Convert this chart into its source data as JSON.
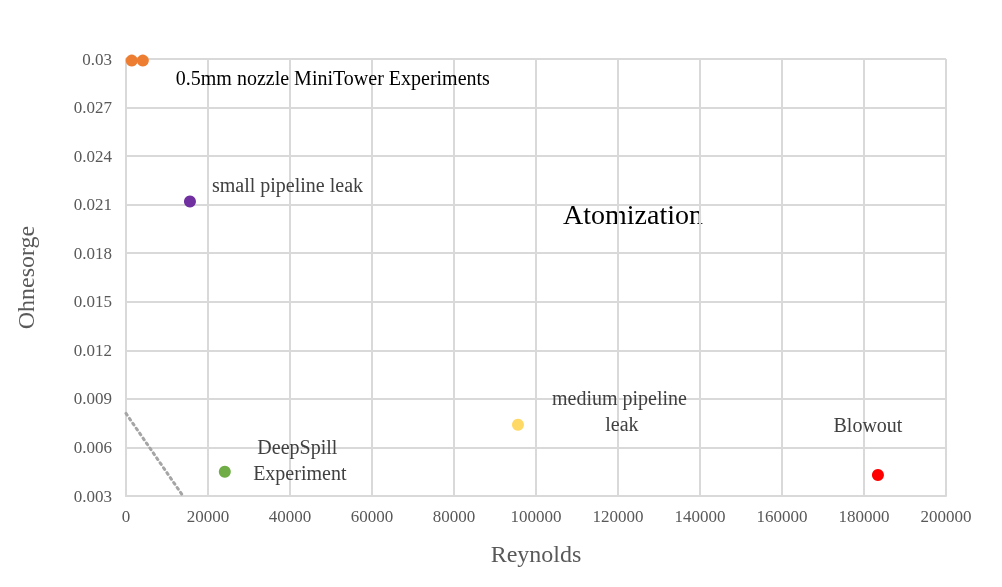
{
  "chart_data": {
    "type": "scatter",
    "xlabel": "Reynolds",
    "ylabel": "Ohnesorge",
    "series": [
      {
        "name": "0.5mm nozzle MiniTower Experiments",
        "color": "#ed7d31",
        "x": [
          1400,
          4100
        ],
        "values": [
          0.0299,
          0.0299
        ]
      },
      {
        "name": "small pipeline leak",
        "color": "#7030a0",
        "x": [
          15600
        ],
        "values": [
          0.0212
        ]
      },
      {
        "name": "DeepSpill Experiment",
        "color": "#70ad47",
        "x": [
          24100
        ],
        "values": [
          0.0045
        ]
      },
      {
        "name": "medium pipeline leak",
        "color": "#ffd966",
        "x": [
          95600
        ],
        "values": [
          0.0074
        ]
      },
      {
        "name": "Blowout",
        "color": "#ff0000",
        "x": [
          183400
        ],
        "values": [
          0.0043
        ]
      },
      {
        "type": "line",
        "color": "#a5a5a5",
        "line_style": "dotted",
        "marker": "none",
        "x": [
          0,
          13900
        ],
        "values": [
          0.0081,
          0.003
        ]
      }
    ],
    "annotations": [
      "Atomization"
    ],
    "xlim": [
      0,
      200000
    ],
    "xticks": [
      0,
      20000,
      40000,
      60000,
      80000,
      100000,
      120000,
      140000,
      160000,
      180000,
      200000
    ],
    "ylim": [
      0.003,
      0.03
    ],
    "yticks": [
      0.003,
      0.006,
      0.009,
      0.012,
      0.015,
      0.018,
      0.021,
      0.024,
      0.027,
      0.03
    ],
    "grid": true,
    "legend": false,
    "marker": "circle"
  }
}
